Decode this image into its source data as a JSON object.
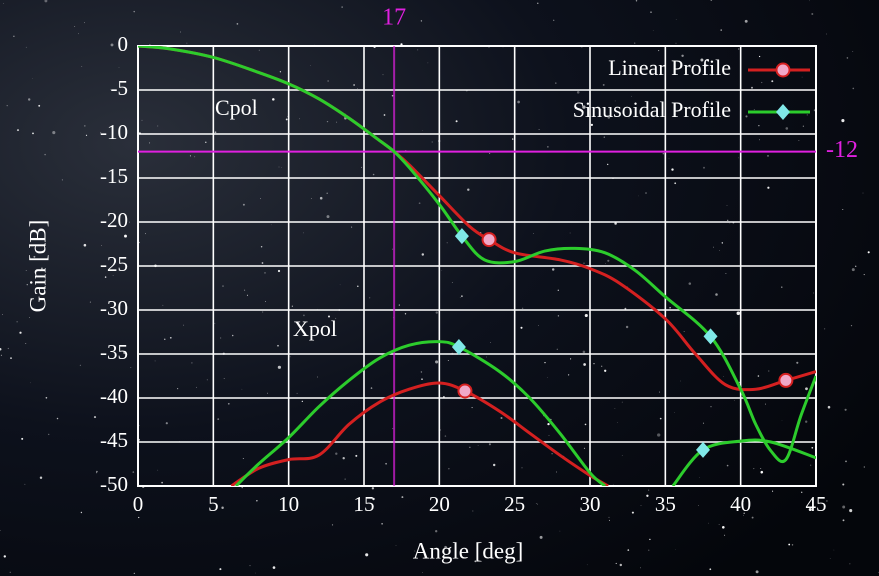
{
  "chart_data": {
    "type": "line",
    "xlabel": "Angle [deg]",
    "ylabel": "Gain [dB]",
    "xlim": [
      0,
      45
    ],
    "ylim": [
      -50,
      0
    ],
    "xticks": [
      0,
      5,
      10,
      15,
      20,
      25,
      30,
      35,
      40,
      45
    ],
    "yticks": [
      0,
      -5,
      -10,
      -15,
      -20,
      -25,
      -30,
      -35,
      -40,
      -45,
      -50
    ],
    "grid": true,
    "legend": "upper right",
    "annotations": [
      "Cpol",
      "Xpol"
    ],
    "vline": 17,
    "hline": -12,
    "ref_color": "#e020e0",
    "series": [
      {
        "name": "Linear Profile",
        "color": "#d42020",
        "marker": "circle",
        "marker_color": "#f0a8c8",
        "curves": [
          {
            "x": [
              0,
              2,
              5,
              8,
              10,
              12,
              14,
              16,
              17,
              18,
              20,
              22,
              23.3,
              25,
              28,
              30,
              32,
              35,
              37,
              39,
              41,
              43,
              45
            ],
            "values": [
              0,
              -0.3,
              -1.3,
              -3,
              -4.3,
              -6,
              -8.2,
              -10.7,
              -12,
              -13.5,
              -17,
              -20.5,
              -22,
              -23.5,
              -24.3,
              -25.3,
              -27,
              -31,
              -35,
              -38.5,
              -39,
              -38,
              -37
            ],
            "marker_x": [
              23.3,
              43
            ],
            "marker_values": [
              -22,
              -38
            ]
          },
          {
            "x": [
              6.2,
              8,
              10,
              12,
              14,
              16,
              18,
              20,
              21.7,
              24,
              26,
              28,
              30,
              31.2
            ],
            "values": [
              -50,
              -48,
              -47,
              -46.5,
              -43,
              -40.5,
              -39,
              -38.3,
              -39.2,
              -41.5,
              -44,
              -46.5,
              -48.8,
              -50
            ],
            "marker_x": [
              21.7
            ],
            "marker_values": [
              -39.2
            ]
          }
        ]
      },
      {
        "name": "Sinusoidal Profile",
        "color": "#2ccc2c",
        "marker": "diamond",
        "marker_color": "#80e8e8",
        "curves": [
          {
            "x": [
              0,
              2,
              5,
              8,
              10,
              12,
              14,
              16,
              17,
              18,
              20,
              21.5,
              23,
              25,
              27,
              29,
              31,
              33,
              35,
              38,
              40,
              41,
              42,
              43,
              44,
              45
            ],
            "values": [
              0,
              -0.3,
              -1.3,
              -3,
              -4.3,
              -6,
              -8.2,
              -10.7,
              -12,
              -13.8,
              -18,
              -21.6,
              -24.3,
              -24.5,
              -23.3,
              -23,
              -23.5,
              -25.5,
              -28.5,
              -33,
              -39,
              -43,
              -46,
              -47,
              -42,
              -37.5
            ],
            "marker_x": [
              21.5,
              38
            ],
            "marker_values": [
              -21.6,
              -33
            ]
          },
          {
            "x": [
              6.5,
              8,
              10,
              12,
              14,
              16,
              18,
              20,
              21.3,
              24,
              26,
              28,
              30,
              31,
              33,
              35.5,
              37.5,
              40,
              42,
              45
            ],
            "values": [
              -50,
              -47.5,
              -44.5,
              -41,
              -38,
              -35.5,
              -34,
              -33.6,
              -34.2,
              -37,
              -40,
              -44,
              -48.5,
              -50,
              null,
              -50,
              -45.9,
              -44.9,
              -45,
              -46.8
            ],
            "marker_x": [
              21.3,
              37.5
            ],
            "marker_values": [
              -34.2,
              -45.9
            ]
          }
        ]
      }
    ]
  }
}
